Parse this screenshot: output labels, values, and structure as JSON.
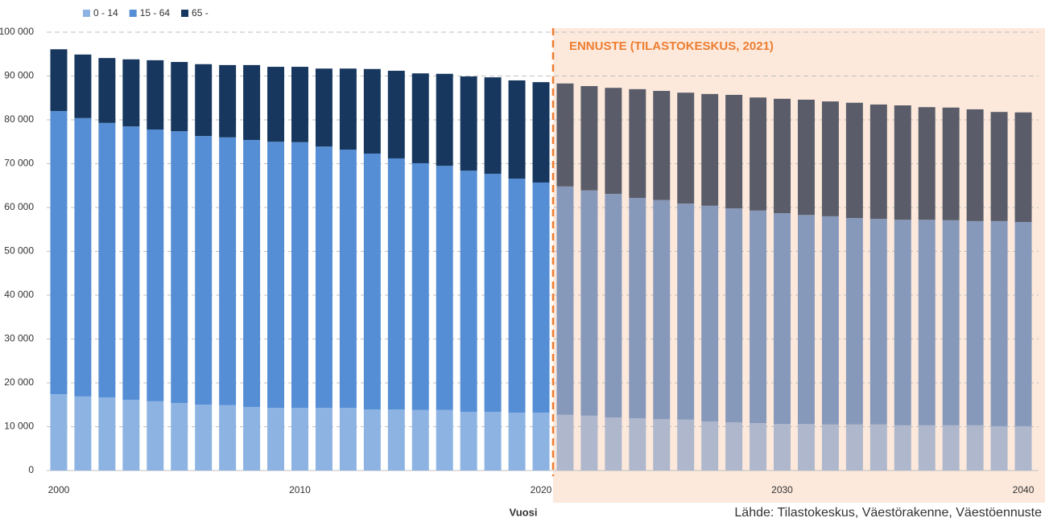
{
  "chart_data": {
    "type": "stacked_bar",
    "x": [
      2000,
      2001,
      2002,
      2003,
      2004,
      2005,
      2006,
      2007,
      2008,
      2009,
      2010,
      2011,
      2012,
      2013,
      2014,
      2015,
      2016,
      2017,
      2018,
      2019,
      2020,
      2021,
      2022,
      2023,
      2024,
      2025,
      2026,
      2027,
      2028,
      2029,
      2030,
      2031,
      2032,
      2033,
      2034,
      2035,
      2036,
      2037,
      2038,
      2039,
      2040
    ],
    "xlim": [
      1999.5,
      2040.5
    ],
    "xticks": [
      2000,
      2010,
      2020,
      2030,
      2040
    ],
    "ylim": [
      0,
      100000
    ],
    "yticks": [
      0,
      {
        "value": 10000,
        "label": "10 000"
      },
      {
        "value": 20000,
        "label": "20 000"
      },
      {
        "value": 30000,
        "label": "30 000"
      },
      {
        "value": 40000,
        "label": "40 000"
      },
      {
        "value": 50000,
        "label": "50 000"
      },
      {
        "value": 60000,
        "label": "60 000"
      },
      {
        "value": 70000,
        "label": "70 000"
      },
      {
        "value": 80000,
        "label": "80 000"
      },
      {
        "value": 90000,
        "label": "90 000"
      },
      {
        "value": 100000,
        "label": "100 000"
      }
    ],
    "grid": true,
    "x_label": "Vuosi",
    "source": "Lähde: Tilastokeskus, Väestörakenne, Väestöennuste",
    "legend": "top-left",
    "forecast": {
      "label": "ENNUSTE (TILASTOKESKUS, 2021)",
      "from": 2020.5,
      "color": "#ed7d31",
      "background": "#fce9dc"
    },
    "series": [
      {
        "name": "0 - 14",
        "color": "#8db3e2",
        "forecast_color": "#aeb7cc",
        "values": [
          17400,
          16900,
          16700,
          16100,
          15800,
          15400,
          15000,
          14900,
          14500,
          14300,
          14300,
          14300,
          14300,
          13900,
          13900,
          13800,
          13800,
          13400,
          13400,
          13200,
          13200,
          12700,
          12500,
          12100,
          11900,
          11700,
          11600,
          11200,
          11000,
          10800,
          10600,
          10600,
          10500,
          10500,
          10500,
          10300,
          10300,
          10300,
          10300,
          10100,
          10100
        ]
      },
      {
        "name": "15 - 64",
        "color": "#558ed5",
        "forecast_color": "#8799bb",
        "values": [
          64600,
          63500,
          62600,
          62400,
          62000,
          62000,
          61300,
          61100,
          60900,
          60700,
          60600,
          59600,
          58900,
          58400,
          57300,
          56300,
          55700,
          55000,
          54300,
          53400,
          52500,
          52100,
          51400,
          51000,
          50300,
          50000,
          49300,
          49200,
          48800,
          48500,
          48100,
          47700,
          47500,
          47100,
          46900,
          46900,
          46900,
          46800,
          46600,
          46800,
          46600
        ]
      },
      {
        "name": "65 -",
        "color": "#17375e",
        "forecast_color": "#5a5d69",
        "values": [
          14100,
          14500,
          14800,
          15300,
          15800,
          15800,
          16400,
          16500,
          17100,
          17100,
          17200,
          17800,
          18500,
          19300,
          20000,
          20500,
          21000,
          21500,
          22000,
          22400,
          22900,
          23500,
          23800,
          24200,
          24800,
          24900,
          25300,
          25500,
          25900,
          25800,
          26100,
          26300,
          26200,
          26300,
          26100,
          26100,
          25700,
          25700,
          25500,
          24900,
          25000
        ]
      }
    ]
  }
}
